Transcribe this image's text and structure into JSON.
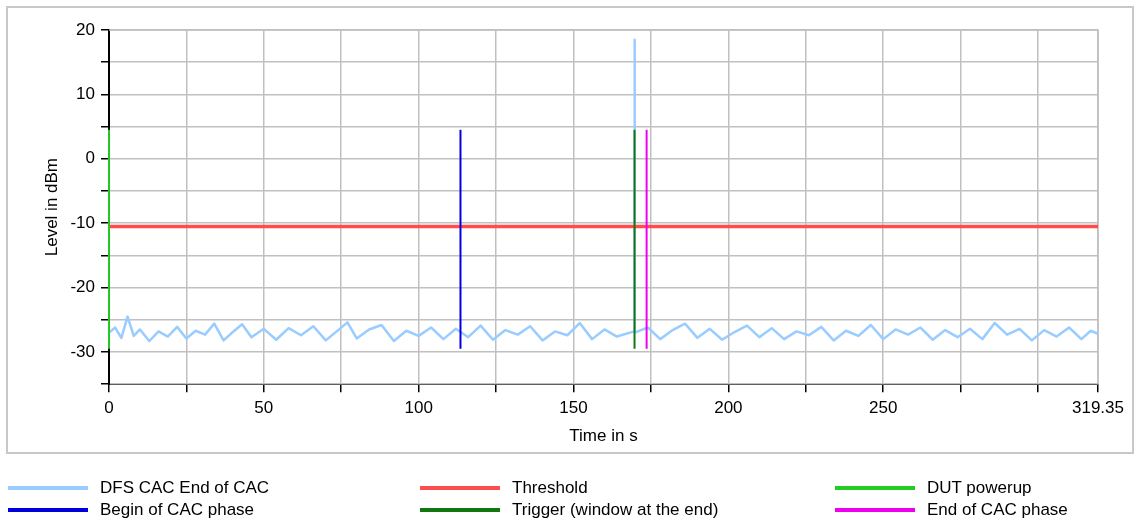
{
  "chart_data": {
    "type": "line",
    "xlabel": "Time in s",
    "ylabel": "Level in dBm",
    "xlim": [
      0,
      319.35
    ],
    "ylim": [
      -35,
      20
    ],
    "xticks": [
      0,
      {
        "value": 25,
        "label": null
      },
      50,
      {
        "value": 75,
        "label": null
      },
      100,
      {
        "value": 125,
        "label": null
      },
      150,
      {
        "value": 175,
        "label": null
      },
      200,
      {
        "value": 225,
        "label": null
      },
      250,
      {
        "value": 275,
        "label": null
      },
      {
        "value": 300,
        "label": null
      },
      319.35
    ],
    "yticks": [
      {
        "value": -35,
        "label": null
      },
      -30,
      {
        "value": -25,
        "label": null
      },
      -20,
      {
        "value": -15,
        "label": null
      },
      -10,
      {
        "value": -5,
        "label": null
      },
      0,
      {
        "value": 5,
        "label": null
      },
      10,
      {
        "value": 15,
        "label": null
      },
      20
    ],
    "grid": true,
    "legend": "bottom",
    "marker": "none",
    "line_style": "solid",
    "series": [
      {
        "name": "DFS CAC End of CAC",
        "color": "#99ccff",
        "x": [
          0,
          2,
          4,
          6,
          8,
          10,
          13,
          16,
          19,
          22,
          25,
          28,
          31,
          34,
          37,
          40,
          43,
          46,
          50,
          54,
          58,
          62,
          66,
          70,
          74,
          77,
          80,
          84,
          88,
          92,
          96,
          100,
          104,
          108,
          112,
          116,
          120,
          124,
          128,
          132,
          136,
          140,
          144,
          148,
          152,
          156,
          160,
          164,
          169.6,
          169.7,
          169.8,
          174,
          178,
          182,
          186,
          190,
          194,
          198,
          202,
          206,
          210,
          214,
          218,
          222,
          226,
          230,
          234,
          238,
          242,
          246,
          250,
          254,
          258,
          262,
          266,
          270,
          274,
          278,
          282,
          286,
          290,
          294,
          298,
          302,
          306,
          310,
          314,
          317,
          319.35
        ],
        "values": [
          -27,
          -26.2,
          -27.8,
          -24.5,
          -27.5,
          -26.5,
          -28.3,
          -26.8,
          -27.6,
          -26.1,
          -27.9,
          -26.7,
          -27.3,
          -25.6,
          -28.2,
          -26.9,
          -25.7,
          -27.7,
          -26.4,
          -28.1,
          -26.3,
          -27.4,
          -26,
          -28.2,
          -26.6,
          -25.4,
          -27.9,
          -26.5,
          -25.8,
          -28.3,
          -26.7,
          -27.5,
          -26.2,
          -28,
          -26.4,
          -27.7,
          -25.9,
          -28.1,
          -26.6,
          -27.3,
          -26,
          -28.2,
          -26.8,
          -27.4,
          -25.5,
          -28,
          -26.5,
          -27.6,
          -26.8,
          18.5,
          -27,
          -26.2,
          -28,
          -26.6,
          -25.6,
          -27.8,
          -26.4,
          -28.1,
          -26.9,
          -25.9,
          -27.7,
          -26.3,
          -28,
          -26.8,
          -27.4,
          -26.1,
          -28.2,
          -26.7,
          -27.5,
          -25.8,
          -28,
          -26.5,
          -27.3,
          -26.2,
          -28.1,
          -26.6,
          -27.7,
          -26.4,
          -28,
          -25.5,
          -27.3,
          -26.4,
          -28.2,
          -26.6,
          -27.6,
          -26.2,
          -28,
          -26.7,
          -27.2
        ]
      },
      {
        "name": "Threshold",
        "color": "#ff4d4d",
        "x": [
          0,
          319.35
        ],
        "values": [
          -10.5,
          -10.5
        ]
      },
      {
        "name": "DUT powerup",
        "color": "#22cc22",
        "x": [
          0,
          0
        ],
        "values": [
          -29.5,
          4.5
        ]
      },
      {
        "name": "Begin of CAC phase",
        "color": "#0000dd",
        "x": [
          113.5,
          113.5
        ],
        "values": [
          -29.5,
          4.5
        ]
      },
      {
        "name": "Trigger (window at the end)",
        "color": "#117711",
        "x": [
          169.7,
          169.7
        ],
        "values": [
          -29.5,
          4.5
        ]
      },
      {
        "name": "End of CAC phase",
        "color": "#ee00ee",
        "x": [
          173.6,
          173.6
        ],
        "values": [
          -29.5,
          4.5
        ]
      }
    ]
  }
}
